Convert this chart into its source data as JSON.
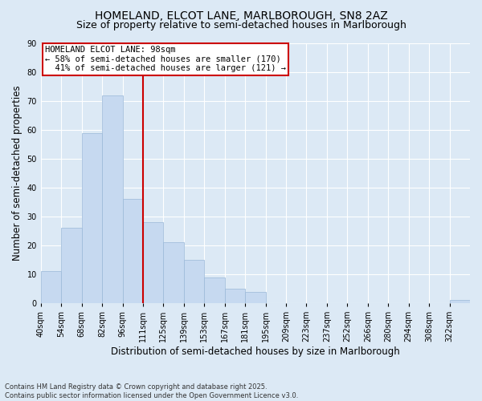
{
  "title1": "HOMELAND, ELCOT LANE, MARLBOROUGH, SN8 2AZ",
  "title2": "Size of property relative to semi-detached houses in Marlborough",
  "xlabel": "Distribution of semi-detached houses by size in Marlborough",
  "ylabel": "Number of semi-detached properties",
  "bin_labels": [
    "40sqm",
    "54sqm",
    "68sqm",
    "82sqm",
    "96sqm",
    "111sqm",
    "125sqm",
    "139sqm",
    "153sqm",
    "167sqm",
    "181sqm",
    "195sqm",
    "209sqm",
    "223sqm",
    "237sqm",
    "252sqm",
    "266sqm",
    "280sqm",
    "294sqm",
    "308sqm",
    "322sqm"
  ],
  "counts": [
    11,
    26,
    59,
    72,
    36,
    28,
    21,
    15,
    9,
    5,
    4,
    0,
    0,
    0,
    0,
    0,
    0,
    0,
    0,
    0,
    1
  ],
  "bar_color": "#c6d9f0",
  "bar_edgecolor": "#9ab8d8",
  "property_label": "HOMELAND ELCOT LANE: 98sqm",
  "pct_smaller": 58,
  "n_smaller": 170,
  "pct_larger": 41,
  "n_larger": 121,
  "vline_color": "#cc0000",
  "annotation_box_edgecolor": "#cc0000",
  "ylim": [
    0,
    90
  ],
  "yticks": [
    0,
    10,
    20,
    30,
    40,
    50,
    60,
    70,
    80,
    90
  ],
  "background_color": "#dce9f5",
  "footer": "Contains HM Land Registry data © Crown copyright and database right 2025.\nContains public sector information licensed under the Open Government Licence v3.0.",
  "title_fontsize": 10,
  "subtitle_fontsize": 9,
  "axis_label_fontsize": 8.5,
  "tick_fontsize": 7,
  "annotation_fontsize": 7.5
}
